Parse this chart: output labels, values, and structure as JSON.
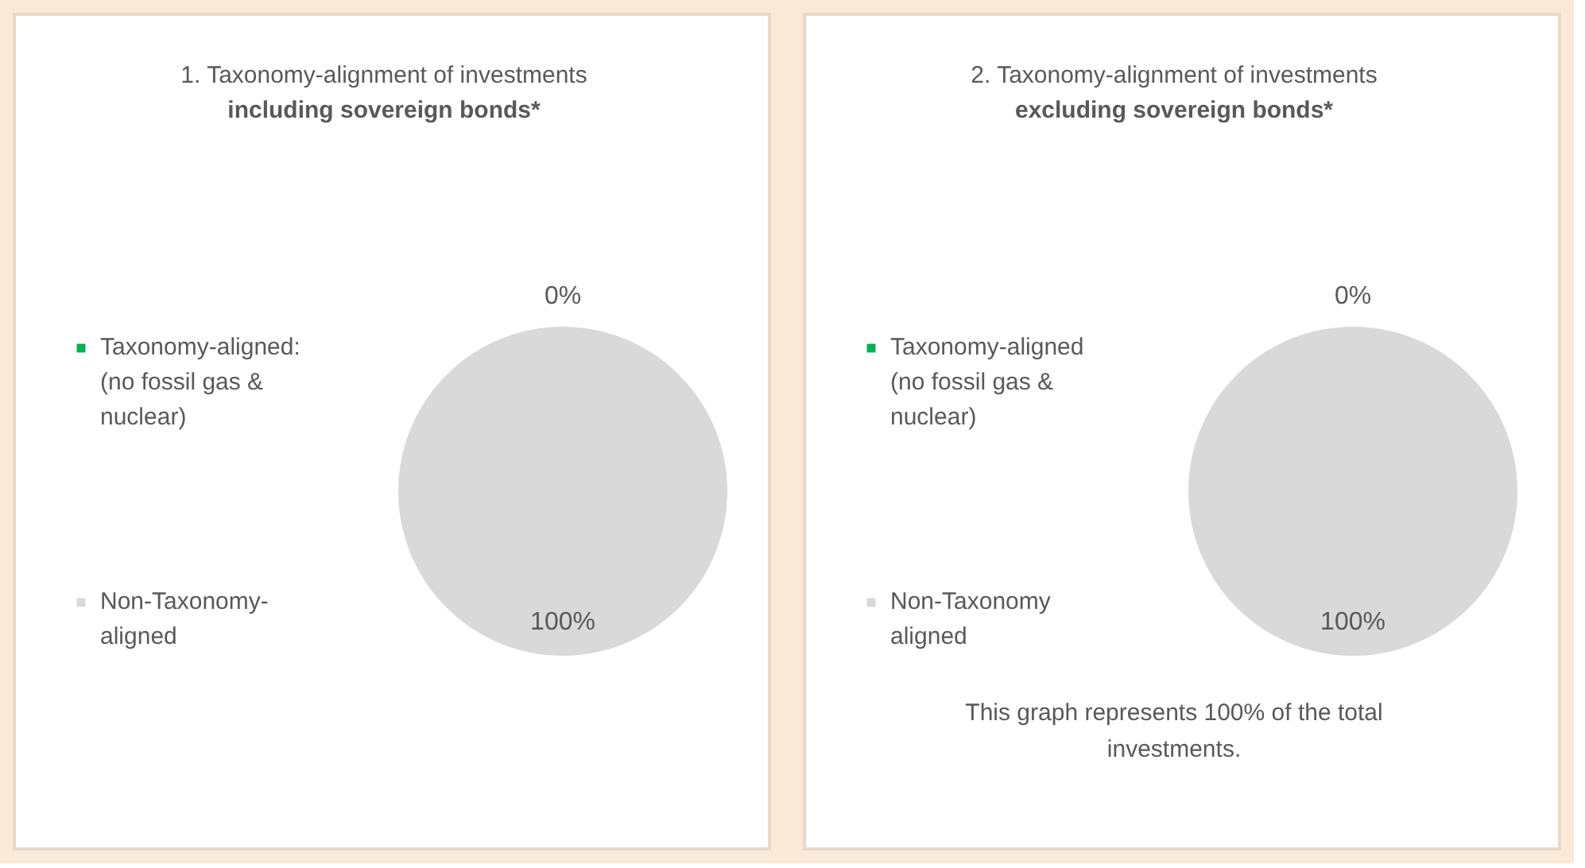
{
  "chart_data": [
    {
      "type": "pie",
      "title": "1. Taxonomy-alignment of investments",
      "subtitle": "including sovereign bonds*",
      "categories": [
        "Taxonomy-aligned: (no fossil gas & nuclear)",
        "Non-Taxonomy-aligned"
      ],
      "values": [
        0,
        100
      ],
      "value_labels": [
        "0%",
        "100%"
      ],
      "colors": [
        "#00b050",
        "#d9d9d9"
      ],
      "legend": "left"
    },
    {
      "type": "pie",
      "title": "2. Taxonomy-alignment of investments",
      "subtitle": "excluding sovereign bonds*",
      "categories": [
        "Taxonomy-aligned (no fossil gas & nuclear)",
        "Non-Taxonomy aligned"
      ],
      "values": [
        0,
        100
      ],
      "value_labels": [
        "0%",
        "100%"
      ],
      "colors": [
        "#00b050",
        "#d9d9d9"
      ],
      "legend": "left",
      "annotations": [
        "This graph represents 100% of the total investments."
      ]
    }
  ]
}
